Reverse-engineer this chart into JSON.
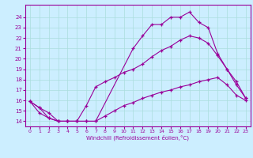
{
  "xlabel": "Windchill (Refroidissement éolien,°C)",
  "bg_color": "#cceeff",
  "line_color": "#990099",
  "grid_color": "#aadddd",
  "xlim": [
    -0.5,
    23.5
  ],
  "ylim": [
    13.5,
    25.2
  ],
  "yticks": [
    14,
    15,
    16,
    17,
    18,
    19,
    20,
    21,
    22,
    23,
    24
  ],
  "xticks": [
    0,
    1,
    2,
    3,
    4,
    5,
    6,
    7,
    8,
    9,
    10,
    11,
    12,
    13,
    14,
    15,
    16,
    17,
    18,
    19,
    20,
    21,
    22,
    23
  ],
  "line2_x": [
    0,
    1,
    2,
    3,
    4,
    5,
    6,
    7,
    11,
    12,
    13,
    14,
    15,
    16,
    17,
    18,
    19,
    20,
    21,
    22,
    23
  ],
  "line2_y": [
    15.9,
    15.3,
    14.3,
    14.0,
    14.0,
    14.0,
    14.0,
    14.0,
    21.0,
    22.2,
    23.3,
    23.3,
    24.0,
    24.0,
    24.5,
    23.5,
    23.0,
    20.5,
    19.0,
    17.5,
    16.2
  ],
  "line1_x": [
    0,
    1,
    2,
    3,
    4,
    5,
    6,
    7,
    8,
    9,
    10,
    11,
    12,
    13,
    14,
    15,
    16,
    17,
    18,
    19,
    20,
    21,
    22,
    23
  ],
  "line1_y": [
    15.9,
    15.3,
    14.8,
    14.0,
    14.0,
    14.0,
    15.5,
    17.3,
    17.8,
    18.2,
    18.7,
    19.0,
    19.5,
    20.2,
    20.8,
    21.2,
    21.8,
    22.2,
    22.0,
    21.5,
    20.3,
    19.0,
    17.8,
    16.2
  ],
  "line3_x": [
    0,
    1,
    2,
    3,
    4,
    5,
    6,
    7,
    8,
    9,
    10,
    11,
    12,
    13,
    14,
    15,
    16,
    17,
    18,
    19,
    20,
    21,
    22,
    23
  ],
  "line3_y": [
    15.9,
    14.8,
    14.3,
    14.0,
    14.0,
    14.0,
    14.0,
    14.0,
    14.5,
    15.0,
    15.5,
    15.8,
    16.2,
    16.5,
    16.8,
    17.0,
    17.3,
    17.5,
    17.8,
    18.0,
    18.2,
    17.5,
    16.5,
    16.0
  ]
}
